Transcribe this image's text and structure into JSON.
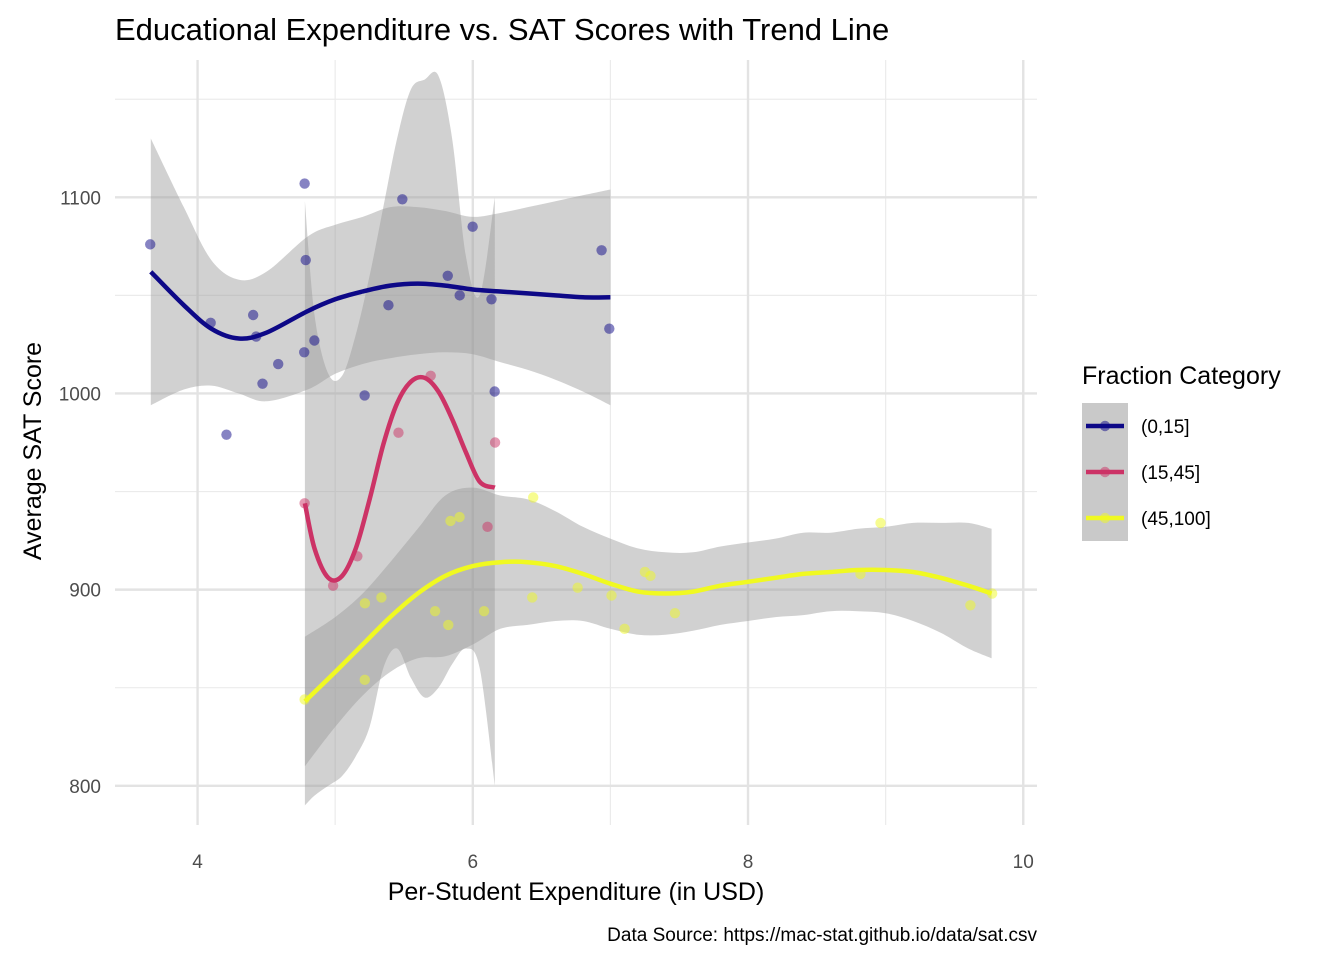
{
  "chart_data": {
    "type": "scatter",
    "title": "Educational Expenditure vs. SAT Scores with Trend Line",
    "xlabel": "Per-Student Expenditure (in USD)",
    "ylabel": "Average SAT Score",
    "caption": "Data Source: https://mac-stat.github.io/data/sat.csv",
    "xlim": [
      3.4,
      10.1
    ],
    "ylim": [
      780,
      1170
    ],
    "x_ticks": [
      4,
      6,
      8,
      10
    ],
    "y_ticks": [
      800,
      900,
      1000,
      1100
    ],
    "grid": true,
    "legend": {
      "title": "Fraction Category",
      "placement": "right"
    },
    "series": [
      {
        "name": "(0,15]",
        "color": "#0d0887",
        "points": [
          [
            3.656,
            1076
          ],
          [
            4.095,
            1036
          ],
          [
            4.21,
            979
          ],
          [
            4.404,
            1040
          ],
          [
            4.426,
            1029
          ],
          [
            4.472,
            1005
          ],
          [
            4.586,
            1015
          ],
          [
            4.775,
            1021
          ],
          [
            4.778,
            1107
          ],
          [
            4.786,
            1068
          ],
          [
            4.849,
            1027
          ],
          [
            5.214,
            999
          ],
          [
            5.387,
            1045
          ],
          [
            5.488,
            1099
          ],
          [
            5.818,
            1060
          ],
          [
            5.905,
            1050
          ],
          [
            5.999,
            1085
          ],
          [
            6.136,
            1048
          ],
          [
            6.159,
            1001
          ],
          [
            6.936,
            1073
          ],
          [
            6.992,
            1033
          ]
        ],
        "trend": {
          "x": [
            3.66,
            3.9,
            4.1,
            4.3,
            4.5,
            4.8,
            5.0,
            5.2,
            5.4,
            5.6,
            5.8,
            6.0,
            6.2,
            6.4,
            6.6,
            6.8,
            7.0
          ],
          "y": [
            1062,
            1045,
            1033,
            1028,
            1031,
            1042,
            1048,
            1052,
            1055,
            1056,
            1055,
            1053,
            1052,
            1051,
            1050,
            1049,
            1049
          ],
          "lower": [
            994,
            1002,
            1004,
            1000,
            996,
            1002,
            1010,
            1015,
            1018,
            1020,
            1021,
            1020,
            1016,
            1012,
            1007,
            1001,
            994
          ],
          "upper": [
            1130,
            1095,
            1068,
            1058,
            1062,
            1080,
            1086,
            1090,
            1095,
            1095,
            1093,
            1090,
            1092,
            1095,
            1098,
            1101,
            1104
          ]
        }
      },
      {
        "name": "(15,45]",
        "color": "#cc3366",
        "points": [
          [
            4.778,
            944
          ],
          [
            4.985,
            902
          ],
          [
            5.161,
            917
          ],
          [
            5.46,
            980
          ],
          [
            5.694,
            1009
          ],
          [
            6.107,
            932
          ],
          [
            6.162,
            975
          ]
        ],
        "trend": {
          "x": [
            4.78,
            4.85,
            4.95,
            5.05,
            5.15,
            5.25,
            5.35,
            5.45,
            5.55,
            5.65,
            5.75,
            5.85,
            5.95,
            6.05,
            6.16
          ],
          "y": [
            944,
            921,
            906,
            907,
            921,
            946,
            974,
            995,
            1006,
            1008,
            1001,
            987,
            970,
            955,
            952
          ],
          "lower": [
            790,
            795,
            800,
            805,
            815,
            830,
            860,
            870,
            855,
            845,
            850,
            862,
            870,
            860,
            800
          ],
          "upper": [
            1098,
            1040,
            1010,
            1009,
            1030,
            1060,
            1095,
            1130,
            1155,
            1160,
            1162,
            1130,
            1070,
            1050,
            1100
          ]
        }
      },
      {
        "name": "(45,100]",
        "color": "#f0f921",
        "points": [
          [
            4.778,
            844
          ],
          [
            5.215,
            854
          ],
          [
            5.216,
            893
          ],
          [
            5.336,
            896
          ],
          [
            5.726,
            889
          ],
          [
            5.822,
            882
          ],
          [
            5.838,
            935
          ],
          [
            5.904,
            937
          ],
          [
            6.082,
            889
          ],
          [
            6.432,
            896
          ],
          [
            6.439,
            947
          ],
          [
            6.762,
            901
          ],
          [
            7.008,
            897
          ],
          [
            7.103,
            880
          ],
          [
            7.251,
            909
          ],
          [
            7.291,
            907
          ],
          [
            7.469,
            888
          ],
          [
            8.817,
            908
          ],
          [
            8.963,
            934
          ],
          [
            9.616,
            892
          ],
          [
            9.774,
            898
          ]
        ],
        "trend": {
          "x": [
            4.78,
            5.0,
            5.2,
            5.4,
            5.6,
            5.8,
            6.0,
            6.2,
            6.4,
            6.6,
            6.8,
            7.0,
            7.2,
            7.4,
            7.6,
            7.8,
            8.0,
            8.2,
            8.4,
            8.6,
            8.8,
            9.0,
            9.2,
            9.4,
            9.6,
            9.77
          ],
          "y": [
            843,
            858,
            872,
            886,
            898,
            907,
            912,
            914,
            914,
            912,
            908,
            903,
            899,
            898,
            899,
            902,
            904,
            906,
            908,
            909,
            910,
            910,
            909,
            906,
            902,
            898
          ],
          "lower": [
            810,
            830,
            846,
            858,
            865,
            866,
            872,
            880,
            882,
            884,
            884,
            880,
            877,
            877,
            879,
            882,
            884,
            886,
            887,
            889,
            889,
            888,
            884,
            878,
            870,
            865
          ],
          "upper": [
            876,
            886,
            898,
            914,
            931,
            948,
            952,
            948,
            946,
            940,
            932,
            926,
            921,
            919,
            919,
            922,
            924,
            926,
            929,
            929,
            931,
            932,
            934,
            934,
            934,
            931
          ]
        }
      }
    ]
  }
}
